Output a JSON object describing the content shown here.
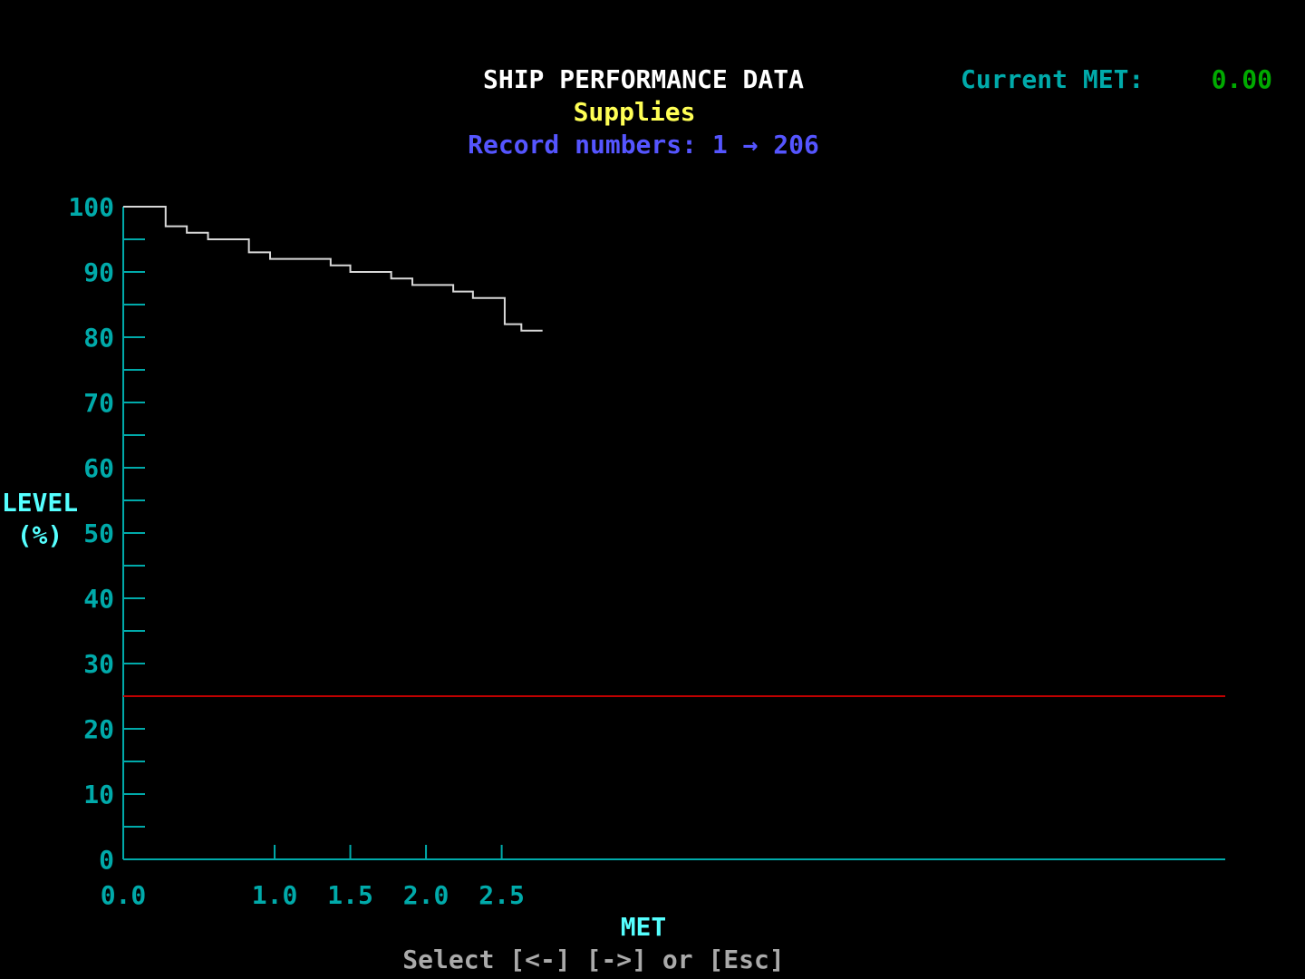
{
  "header": {
    "current_met_label": "Current MET:",
    "current_met_value": "0.00"
  },
  "chart_data": {
    "type": "line",
    "title": "SHIP PERFORMANCE DATA",
    "subtitle": "Supplies",
    "record_label": "Record numbers: 1 → 206",
    "y_label_lines": [
      "LEVEL",
      "(%)"
    ],
    "x_label": "MET",
    "step": "post",
    "x": [
      0,
      0.28,
      0.42,
      0.56,
      0.83,
      0.97,
      1.37,
      1.5,
      1.77,
      1.91,
      2.18,
      2.31,
      2.47,
      2.52,
      2.63,
      2.77
    ],
    "series": [
      {
        "name": "Supplies",
        "color": "#d8d8d8",
        "values": [
          100,
          97,
          96,
          95,
          93,
          92,
          91,
          90,
          89,
          88,
          87,
          86,
          86,
          82,
          81,
          81
        ]
      }
    ],
    "threshold": 25,
    "threshold_color": "#c00000",
    "xlim": [
      0,
      7.28
    ],
    "xticks": [
      {
        "value": 0,
        "label": "0.0"
      },
      {
        "value": 1,
        "label": "1.0"
      },
      {
        "value": 1.5,
        "label": "1.5"
      },
      {
        "value": 2,
        "label": "2.0"
      },
      {
        "value": 2.5,
        "label": "2.5"
      }
    ],
    "ylim": [
      0,
      100
    ],
    "yticks": [
      0,
      10,
      20,
      30,
      40,
      50,
      60,
      70,
      80,
      90,
      100
    ],
    "minor_yticks": [
      5,
      15,
      25,
      35,
      45,
      55,
      65,
      75,
      85,
      95
    ],
    "axis_color": "#00aaaa"
  },
  "footer": {
    "instructions": "Select [<-] [->] or [Esc]"
  }
}
